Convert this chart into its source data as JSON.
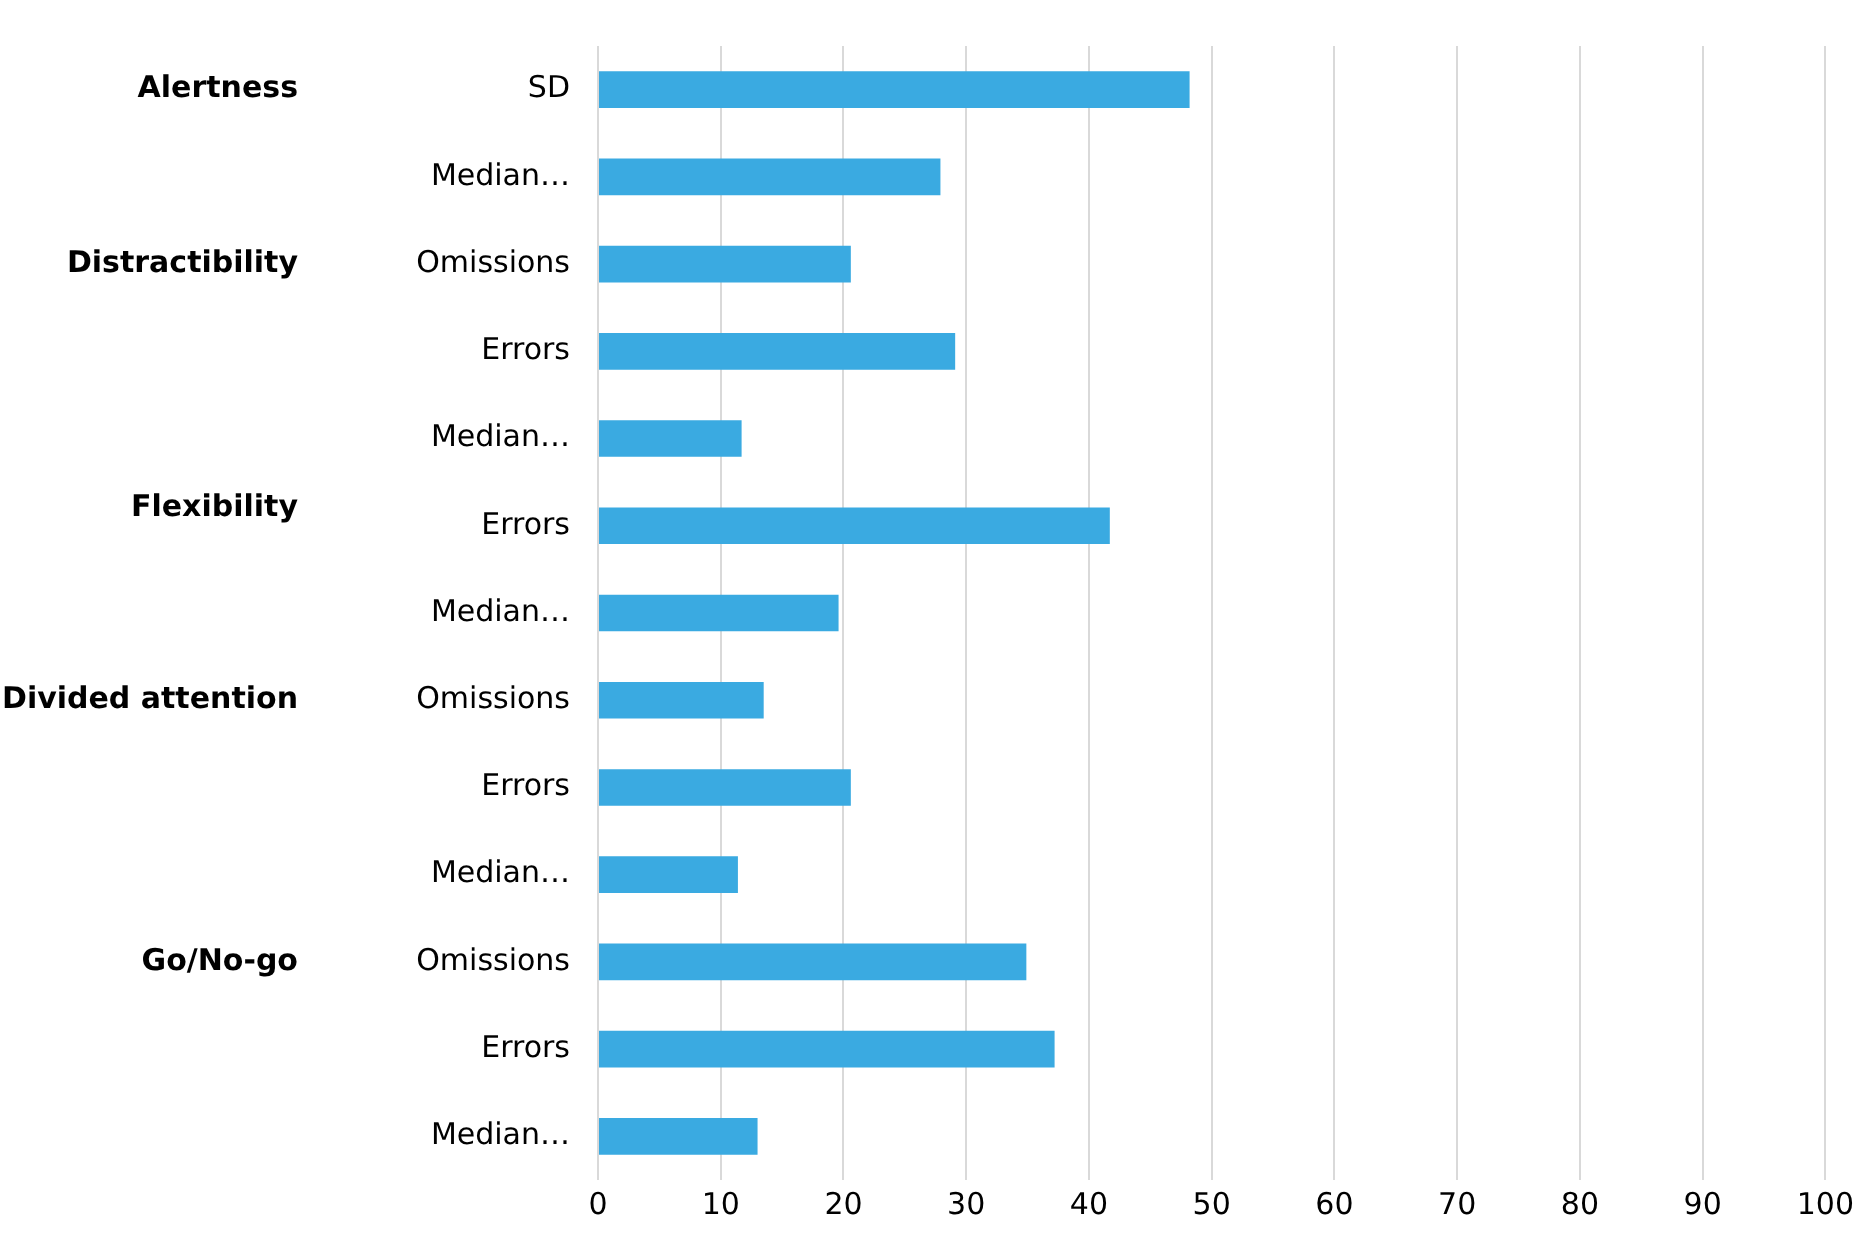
{
  "chart_data": {
    "type": "bar",
    "orientation": "horizontal",
    "categories": [
      "SD",
      "Median…",
      "Omissions",
      "Errors",
      "Median…",
      "Errors",
      "Median…",
      "Omissions",
      "Errors",
      "Median…",
      "Omissions",
      "Errors",
      "Median…"
    ],
    "values": [
      48.2,
      27.9,
      20.6,
      29.1,
      11.7,
      41.7,
      19.6,
      13.5,
      20.6,
      11.4,
      34.9,
      37.2,
      13.0
    ],
    "color": "#3aaae1",
    "annotations": [
      "Alertness",
      "Distractibility",
      "Flexibility",
      "Divided attention",
      "Go/No-go"
    ],
    "xlim": [
      0,
      100
    ],
    "xticks": [
      0,
      10,
      20,
      30,
      40,
      50,
      60,
      70,
      80,
      90,
      100
    ],
    "grid": "x",
    "legend": false
  }
}
